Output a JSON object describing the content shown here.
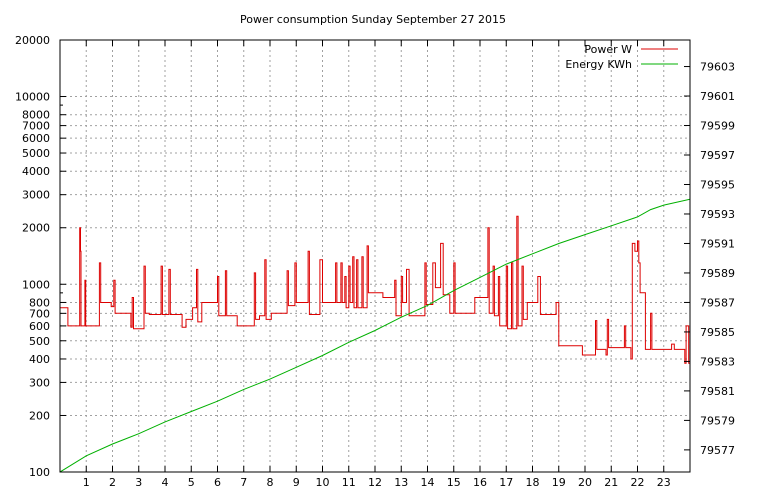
{
  "chart_data": {
    "type": "line",
    "title": "Power consumption Sunday September 27 2015",
    "xlabel": "",
    "ylabel": "",
    "y2label": "",
    "xlim": [
      0,
      24
    ],
    "ylim": [
      100,
      20000
    ],
    "y_scale": "log",
    "y2lim": [
      79575.5,
      79604.8
    ],
    "grid": true,
    "legend_position": "top-right",
    "x_ticks": [
      "1",
      "2",
      "3",
      "4",
      "5",
      "6",
      "7",
      "8",
      "9",
      "10",
      "11",
      "12",
      "13",
      "14",
      "15",
      "16",
      "17",
      "18",
      "19",
      "20",
      "21",
      "22",
      "23"
    ],
    "y_ticks": [
      {
        "value": 100,
        "label": "100"
      },
      {
        "value": 200,
        "label": "200"
      },
      {
        "value": 300,
        "label": "300"
      },
      {
        "value": 400,
        "label": "400"
      },
      {
        "value": 500,
        "label": "500"
      },
      {
        "value": 600,
        "label": "600"
      },
      {
        "value": 700,
        "label": "700"
      },
      {
        "value": 800,
        "label": "800"
      },
      {
        "value": 1000,
        "label": "1000"
      },
      {
        "value": 2000,
        "label": "2000"
      },
      {
        "value": 3000,
        "label": "3000"
      },
      {
        "value": 4000,
        "label": "4000"
      },
      {
        "value": 5000,
        "label": "5000"
      },
      {
        "value": 6000,
        "label": "6000"
      },
      {
        "value": 7000,
        "label": "7000"
      },
      {
        "value": 8000,
        "label": "8000"
      },
      {
        "value": 10000,
        "label": "10000"
      },
      {
        "value": 20000,
        "label": "20000"
      }
    ],
    "y2_ticks": [
      "79577",
      "79579",
      "79581",
      "79583",
      "79585",
      "79587",
      "79589",
      "79591",
      "79593",
      "79595",
      "79597",
      "79599",
      "79601",
      "79603"
    ],
    "series": [
      {
        "name": "Power W",
        "axis": "left",
        "color": "#dd0000",
        "steps": [
          [
            0.0,
            750
          ],
          [
            0.3,
            600
          ],
          [
            0.75,
            2000
          ],
          [
            0.78,
            1500
          ],
          [
            0.8,
            600
          ],
          [
            0.95,
            1050
          ],
          [
            0.98,
            600
          ],
          [
            1.5,
            1300
          ],
          [
            1.55,
            800
          ],
          [
            1.95,
            760
          ],
          [
            2.05,
            1050
          ],
          [
            2.1,
            700
          ],
          [
            2.7,
            590
          ],
          [
            2.75,
            850
          ],
          [
            2.8,
            580
          ],
          [
            3.2,
            1250
          ],
          [
            3.25,
            700
          ],
          [
            3.4,
            690
          ],
          [
            3.85,
            1250
          ],
          [
            3.9,
            690
          ],
          [
            4.15,
            1200
          ],
          [
            4.2,
            690
          ],
          [
            4.65,
            590
          ],
          [
            4.8,
            650
          ],
          [
            5.05,
            750
          ],
          [
            5.2,
            1200
          ],
          [
            5.25,
            630
          ],
          [
            5.4,
            800
          ],
          [
            6.0,
            1100
          ],
          [
            6.05,
            680
          ],
          [
            6.3,
            1180
          ],
          [
            6.35,
            680
          ],
          [
            6.75,
            600
          ],
          [
            7.4,
            1150
          ],
          [
            7.45,
            650
          ],
          [
            7.6,
            680
          ],
          [
            7.8,
            1350
          ],
          [
            7.85,
            650
          ],
          [
            8.05,
            700
          ],
          [
            8.65,
            1180
          ],
          [
            8.7,
            770
          ],
          [
            8.95,
            1300
          ],
          [
            9.0,
            800
          ],
          [
            9.45,
            1500
          ],
          [
            9.5,
            690
          ],
          [
            9.9,
            1350
          ],
          [
            10.0,
            800
          ],
          [
            10.5,
            1300
          ],
          [
            10.55,
            800
          ],
          [
            10.7,
            1300
          ],
          [
            10.75,
            800
          ],
          [
            10.85,
            1100
          ],
          [
            10.9,
            750
          ],
          [
            11.0,
            1250
          ],
          [
            11.05,
            800
          ],
          [
            11.15,
            1400
          ],
          [
            11.2,
            750
          ],
          [
            11.3,
            1350
          ],
          [
            11.35,
            750
          ],
          [
            11.5,
            1400
          ],
          [
            11.55,
            750
          ],
          [
            11.7,
            1600
          ],
          [
            11.75,
            900
          ],
          [
            12.3,
            850
          ],
          [
            12.75,
            1050
          ],
          [
            12.8,
            680
          ],
          [
            13.0,
            1100
          ],
          [
            13.05,
            800
          ],
          [
            13.2,
            1200
          ],
          [
            13.3,
            680
          ],
          [
            13.9,
            1300
          ],
          [
            13.95,
            780
          ],
          [
            14.2,
            1300
          ],
          [
            14.3,
            960
          ],
          [
            14.5,
            1650
          ],
          [
            14.6,
            880
          ],
          [
            14.85,
            700
          ],
          [
            15.0,
            1300
          ],
          [
            15.05,
            700
          ],
          [
            15.8,
            850
          ],
          [
            16.3,
            2000
          ],
          [
            16.35,
            700
          ],
          [
            16.5,
            1250
          ],
          [
            16.55,
            680
          ],
          [
            16.7,
            1100
          ],
          [
            16.75,
            600
          ],
          [
            17.0,
            1250
          ],
          [
            17.05,
            580
          ],
          [
            17.2,
            1300
          ],
          [
            17.25,
            580
          ],
          [
            17.4,
            2300
          ],
          [
            17.45,
            600
          ],
          [
            17.6,
            1250
          ],
          [
            17.65,
            650
          ],
          [
            17.8,
            800
          ],
          [
            18.2,
            1100
          ],
          [
            18.3,
            690
          ],
          [
            18.9,
            800
          ],
          [
            19.0,
            470
          ],
          [
            19.9,
            420
          ],
          [
            20.4,
            640
          ],
          [
            20.45,
            450
          ],
          [
            20.8,
            420
          ],
          [
            20.85,
            650
          ],
          [
            20.9,
            460
          ],
          [
            21.5,
            600
          ],
          [
            21.55,
            460
          ],
          [
            21.75,
            400
          ],
          [
            21.8,
            1650
          ],
          [
            21.9,
            1500
          ],
          [
            22.0,
            1700
          ],
          [
            22.05,
            1300
          ],
          [
            22.1,
            900
          ],
          [
            22.3,
            450
          ],
          [
            22.5,
            700
          ],
          [
            22.55,
            450
          ],
          [
            23.3,
            480
          ],
          [
            23.4,
            450
          ],
          [
            23.8,
            380
          ],
          [
            23.85,
            600
          ],
          [
            23.95,
            380
          ]
        ]
      },
      {
        "name": "Energy KWh",
        "axis": "right",
        "color": "#00b000",
        "points": [
          [
            0,
            79575.5
          ],
          [
            1,
            79576.6
          ],
          [
            2,
            79577.4
          ],
          [
            3,
            79578.1
          ],
          [
            4,
            79578.9
          ],
          [
            5,
            79579.6
          ],
          [
            6,
            79580.3
          ],
          [
            7,
            79581.1
          ],
          [
            8,
            79581.8
          ],
          [
            9,
            79582.6
          ],
          [
            10,
            79583.4
          ],
          [
            11,
            79584.3
          ],
          [
            12,
            79585.1
          ],
          [
            13,
            79586.0
          ],
          [
            14,
            79586.8
          ],
          [
            15,
            79587.8
          ],
          [
            16,
            79588.7
          ],
          [
            17,
            79589.6
          ],
          [
            18,
            79590.3
          ],
          [
            19,
            79591.0
          ],
          [
            20,
            79591.6
          ],
          [
            21,
            79592.2
          ],
          [
            22,
            79592.8
          ],
          [
            22.5,
            79593.3
          ],
          [
            23,
            79593.6
          ],
          [
            24,
            79594.0
          ]
        ]
      }
    ]
  }
}
